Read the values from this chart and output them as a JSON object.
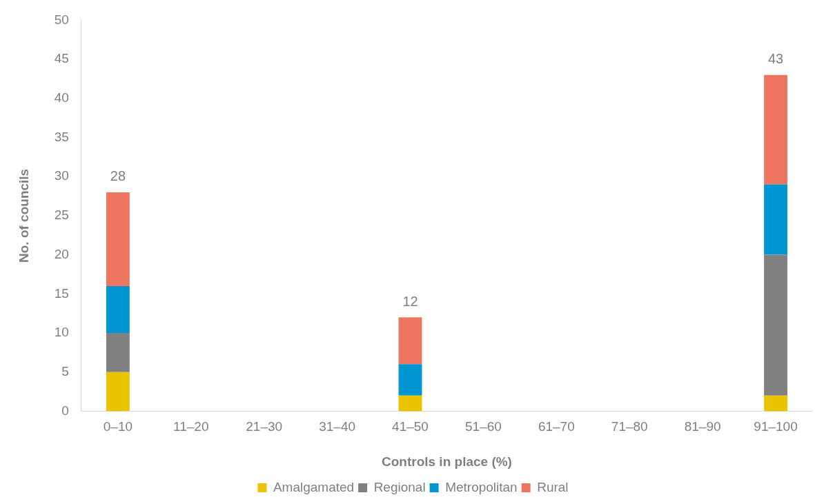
{
  "chart_data": {
    "type": "bar",
    "stacked": true,
    "xlabel": "Controls in place (%)",
    "ylabel": "No. of councils",
    "categories": [
      "0–10",
      "11–20",
      "21–30",
      "31–40",
      "41–50",
      "51–60",
      "61–70",
      "71–80",
      "81–90",
      "91–100"
    ],
    "series": [
      {
        "name": "Amalgamated",
        "color": "#eac400",
        "values": [
          5,
          0,
          0,
          0,
          2,
          0,
          0,
          0,
          0,
          2
        ]
      },
      {
        "name": "Regional",
        "color": "#808080",
        "values": [
          5,
          0,
          0,
          0,
          0,
          0,
          0,
          0,
          0,
          18
        ]
      },
      {
        "name": "Metropolitan",
        "color": "#0096d2",
        "values": [
          6,
          0,
          0,
          0,
          4,
          0,
          0,
          0,
          0,
          9
        ]
      },
      {
        "name": "Rural",
        "color": "#ee7660",
        "values": [
          12,
          0,
          0,
          0,
          6,
          0,
          0,
          0,
          0,
          14
        ]
      }
    ],
    "totals": [
      "28",
      null,
      null,
      null,
      "12",
      null,
      null,
      null,
      null,
      "43"
    ],
    "ylim": [
      0,
      50
    ],
    "yticks": [
      0,
      5,
      10,
      15,
      20,
      25,
      30,
      35,
      40,
      45,
      50
    ],
    "grid": false,
    "legend": "bottom"
  }
}
